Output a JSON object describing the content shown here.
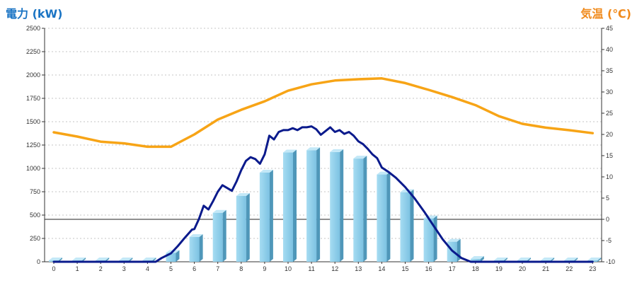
{
  "chart_data": {
    "type": "bar",
    "title_left": "電力 (kW)",
    "title_right": "気温 (℃)",
    "categories": [
      "0",
      "1",
      "2",
      "3",
      "4",
      "5",
      "6",
      "7",
      "8",
      "9",
      "10",
      "11",
      "12",
      "13",
      "14",
      "15",
      "16",
      "17",
      "18",
      "19",
      "20",
      "21",
      "22",
      "23"
    ],
    "y_left": {
      "min": 0,
      "max": 2500,
      "ticks": [
        0,
        250,
        500,
        750,
        1000,
        1250,
        1500,
        1750,
        2000,
        2250,
        2500
      ]
    },
    "y_right": {
      "min": -10,
      "max": 45,
      "ticks": [
        -10,
        -5,
        0,
        5,
        10,
        15,
        20,
        25,
        30,
        35,
        40,
        45
      ]
    },
    "grid": true,
    "reference_line_right": 0,
    "series": [
      {
        "type": "bar",
        "axis": "left",
        "color": "#8ecfe9",
        "values": [
          15,
          15,
          15,
          15,
          15,
          95,
          265,
          525,
          705,
          955,
          1170,
          1195,
          1175,
          1105,
          935,
          745,
          465,
          215,
          30,
          15,
          15,
          15,
          15,
          15
        ]
      },
      {
        "type": "line",
        "axis": "left",
        "color": "#0a1a8c",
        "points": [
          [
            0,
            0
          ],
          [
            1,
            0
          ],
          [
            2,
            0
          ],
          [
            3,
            0
          ],
          [
            4,
            0
          ],
          [
            4.35,
            0
          ],
          [
            4.6,
            40
          ],
          [
            5,
            90
          ],
          [
            5.3,
            170
          ],
          [
            5.6,
            260
          ],
          [
            5.9,
            345
          ],
          [
            6,
            350
          ],
          [
            6.2,
            460
          ],
          [
            6.4,
            600
          ],
          [
            6.6,
            560
          ],
          [
            6.8,
            650
          ],
          [
            7,
            750
          ],
          [
            7.2,
            820
          ],
          [
            7.4,
            790
          ],
          [
            7.6,
            760
          ],
          [
            7.8,
            860
          ],
          [
            8,
            980
          ],
          [
            8.2,
            1080
          ],
          [
            8.4,
            1120
          ],
          [
            8.6,
            1100
          ],
          [
            8.8,
            1050
          ],
          [
            9,
            1150
          ],
          [
            9.2,
            1350
          ],
          [
            9.4,
            1310
          ],
          [
            9.6,
            1390
          ],
          [
            9.8,
            1410
          ],
          [
            10,
            1410
          ],
          [
            10.2,
            1430
          ],
          [
            10.4,
            1410
          ],
          [
            10.6,
            1440
          ],
          [
            10.8,
            1440
          ],
          [
            11,
            1450
          ],
          [
            11.2,
            1420
          ],
          [
            11.4,
            1360
          ],
          [
            11.6,
            1400
          ],
          [
            11.8,
            1440
          ],
          [
            12,
            1390
          ],
          [
            12.2,
            1410
          ],
          [
            12.4,
            1370
          ],
          [
            12.6,
            1390
          ],
          [
            12.8,
            1350
          ],
          [
            13,
            1290
          ],
          [
            13.2,
            1260
          ],
          [
            13.4,
            1210
          ],
          [
            13.6,
            1150
          ],
          [
            13.8,
            1110
          ],
          [
            14,
            1010
          ],
          [
            14.3,
            960
          ],
          [
            14.6,
            900
          ],
          [
            15,
            800
          ],
          [
            15.4,
            680
          ],
          [
            15.8,
            540
          ],
          [
            16.2,
            390
          ],
          [
            16.6,
            240
          ],
          [
            17,
            120
          ],
          [
            17.4,
            40
          ],
          [
            17.8,
            0
          ],
          [
            18,
            0
          ],
          [
            19,
            0
          ],
          [
            20,
            0
          ],
          [
            21,
            0
          ],
          [
            22,
            0
          ],
          [
            23,
            0
          ]
        ]
      },
      {
        "type": "line",
        "axis": "right",
        "color": "#f7a416",
        "points": [
          [
            0,
            20.5
          ],
          [
            1,
            19.5
          ],
          [
            2,
            18.3
          ],
          [
            3,
            17.9
          ],
          [
            4,
            17.1
          ],
          [
            5,
            17.1
          ],
          [
            6,
            20
          ],
          [
            7,
            23.5
          ],
          [
            8,
            25.8
          ],
          [
            9,
            27.8
          ],
          [
            10,
            30.3
          ],
          [
            11,
            31.8
          ],
          [
            12,
            32.7
          ],
          [
            13,
            33
          ],
          [
            14,
            33.2
          ],
          [
            15,
            32.1
          ],
          [
            16,
            30.5
          ],
          [
            17,
            28.8
          ],
          [
            18,
            26.9
          ],
          [
            19,
            24.3
          ],
          [
            20,
            22.5
          ],
          [
            21,
            21.6
          ],
          [
            22,
            21
          ],
          [
            23,
            20.3
          ]
        ]
      }
    ]
  }
}
